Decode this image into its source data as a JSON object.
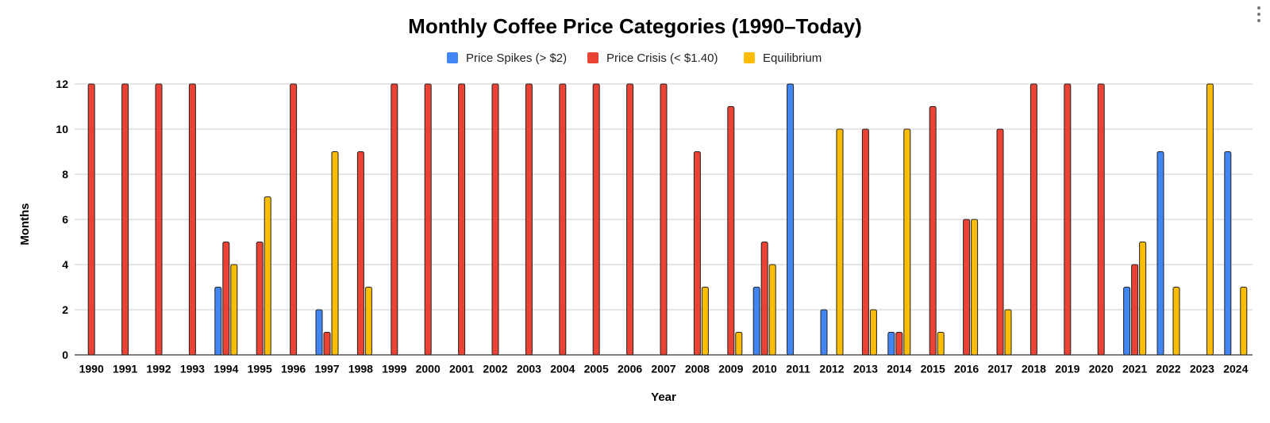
{
  "chart_data": {
    "type": "bar",
    "title": "Monthly Coffee Price Categories (1990–Today)",
    "xlabel": "Year",
    "ylabel": "Months",
    "ylim": [
      0,
      12
    ],
    "yticks": [
      0,
      2,
      4,
      6,
      8,
      10,
      12
    ],
    "grid": true,
    "legend_position": "top",
    "categories": [
      "1990",
      "1991",
      "1992",
      "1993",
      "1994",
      "1995",
      "1996",
      "1997",
      "1998",
      "1999",
      "2000",
      "2001",
      "2002",
      "2003",
      "2004",
      "2005",
      "2006",
      "2007",
      "2008",
      "2009",
      "2010",
      "2011",
      "2012",
      "2013",
      "2014",
      "2015",
      "2016",
      "2017",
      "2018",
      "2019",
      "2020",
      "2021",
      "2022",
      "2023",
      "2024"
    ],
    "series": [
      {
        "name": "Price Spikes (> $2)",
        "color": "#4285f4",
        "values": [
          0,
          0,
          0,
          0,
          3,
          0,
          0,
          2,
          0,
          0,
          0,
          0,
          0,
          0,
          0,
          0,
          0,
          0,
          0,
          0,
          3,
          12,
          2,
          0,
          1,
          0,
          0,
          0,
          0,
          0,
          0,
          3,
          9,
          0,
          9
        ]
      },
      {
        "name": "Price Crisis (< $1.40)",
        "color": "#ea4335",
        "values": [
          12,
          12,
          12,
          12,
          5,
          5,
          12,
          1,
          9,
          12,
          12,
          12,
          12,
          12,
          12,
          12,
          12,
          12,
          9,
          11,
          5,
          0,
          0,
          10,
          1,
          11,
          6,
          10,
          12,
          12,
          12,
          4,
          0,
          0,
          0
        ]
      },
      {
        "name": "Equilibrium",
        "color": "#fbbc04",
        "values": [
          0,
          0,
          0,
          0,
          4,
          7,
          0,
          9,
          3,
          0,
          0,
          0,
          0,
          0,
          0,
          0,
          0,
          0,
          3,
          1,
          4,
          0,
          10,
          2,
          10,
          1,
          6,
          2,
          0,
          0,
          0,
          5,
          3,
          12,
          3
        ]
      }
    ]
  }
}
